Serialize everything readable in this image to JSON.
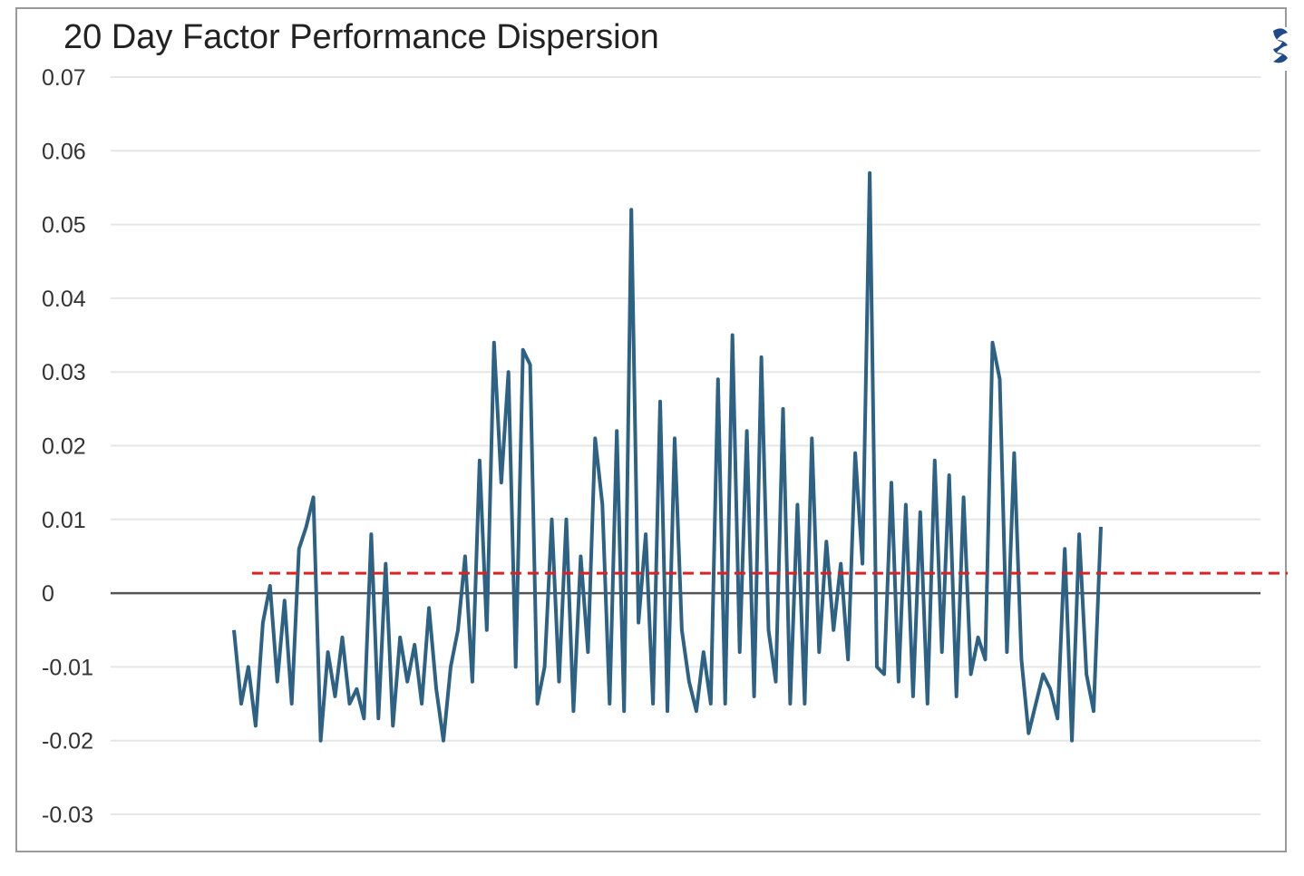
{
  "chart_data": {
    "type": "line",
    "title": "20 Day Factor Performance Dispersion",
    "xlabel": "",
    "ylabel": "",
    "ylim": [
      -0.03,
      0.07
    ],
    "yticks": [
      0.07,
      0.06,
      0.05,
      0.04,
      0.03,
      0.02,
      0.01,
      0,
      -0.01,
      -0.02,
      -0.03
    ],
    "ytick_labels": [
      "0.07",
      "0.06",
      "0.05",
      "0.04",
      "0.03",
      "0.02",
      "0.01",
      "0",
      "-0.01",
      "-0.02",
      "-0.03"
    ],
    "xlim": [
      0,
      480
    ],
    "grid": true,
    "reference_line": {
      "y": 0.0027,
      "x_start": 10,
      "style": "dashed",
      "color": "#e02020"
    },
    "zero_line_color": "#555555",
    "series": [
      {
        "color": "#2e6284",
        "x": [
          0,
          4,
          8,
          12,
          16,
          20,
          24,
          28,
          32,
          36,
          40,
          44,
          48,
          52,
          56,
          60,
          64,
          68,
          72,
          76,
          80,
          84,
          88,
          92,
          96,
          100,
          104,
          108,
          112,
          116,
          120,
          124,
          128,
          132,
          136,
          140,
          144,
          148,
          152,
          156,
          160,
          164,
          168,
          172,
          176,
          180,
          184,
          188,
          192,
          196,
          200,
          204,
          208,
          212,
          216,
          220,
          224,
          228,
          232,
          236,
          240,
          244,
          248,
          252,
          256,
          260,
          264,
          268,
          272,
          276,
          280,
          284,
          288,
          292,
          296,
          300,
          304,
          308,
          312,
          316,
          320,
          324,
          328,
          332,
          336,
          340,
          344,
          348,
          352,
          356,
          360,
          364,
          368,
          372,
          376,
          380,
          384,
          388,
          392,
          396,
          400,
          404,
          408,
          412,
          416,
          420,
          424,
          428,
          432,
          436,
          440,
          444,
          448,
          452,
          456,
          460,
          464,
          468,
          472,
          476,
          480
        ],
        "y": [
          -0.005,
          -0.015,
          -0.01,
          -0.018,
          -0.004,
          0.001,
          -0.012,
          -0.001,
          -0.015,
          0.006,
          0.009,
          0.013,
          -0.02,
          -0.008,
          -0.014,
          -0.006,
          -0.015,
          -0.013,
          -0.017,
          0.008,
          -0.017,
          0.004,
          -0.018,
          -0.006,
          -0.012,
          -0.007,
          -0.015,
          -0.002,
          -0.013,
          -0.02,
          -0.01,
          -0.005,
          0.005,
          -0.012,
          0.018,
          -0.005,
          0.034,
          0.015,
          0.03,
          -0.01,
          0.033,
          0.031,
          -0.015,
          -0.01,
          0.01,
          -0.012,
          0.01,
          -0.016,
          0.005,
          -0.008,
          0.021,
          0.012,
          -0.015,
          0.022,
          -0.016,
          0.052,
          -0.004,
          0.008,
          -0.015,
          0.026,
          -0.016,
          0.021,
          -0.005,
          -0.012,
          -0.016,
          -0.008,
          -0.015,
          0.029,
          -0.015,
          0.035,
          -0.008,
          0.022,
          -0.014,
          0.032,
          -0.005,
          -0.012,
          0.025,
          -0.015,
          0.012,
          -0.015,
          0.021,
          -0.008,
          0.007,
          -0.005,
          0.004,
          -0.009,
          0.019,
          0.004,
          0.057,
          -0.01,
          -0.011,
          0.015,
          -0.012,
          0.012,
          -0.014,
          0.011,
          -0.015,
          0.018,
          -0.008,
          0.016,
          -0.014,
          0.013,
          -0.011,
          -0.006,
          -0.009,
          0.034,
          0.029,
          -0.008,
          0.019,
          -0.009,
          -0.019,
          -0.015,
          -0.011,
          -0.013,
          -0.017,
          0.006,
          -0.02,
          0.008,
          -0.011,
          -0.016,
          0.009
        ]
      }
    ]
  }
}
